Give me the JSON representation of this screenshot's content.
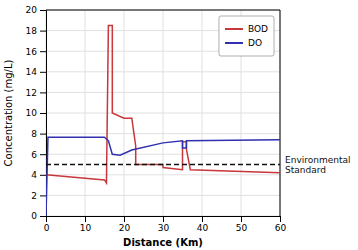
{
  "chart_data": {
    "type": "line",
    "xlabel": "Distance (Km)",
    "ylabel": "Concentration (mg/L)",
    "xlim": [
      0,
      60
    ],
    "ylim": [
      0,
      20
    ],
    "xticks": [
      0,
      10,
      20,
      30,
      40,
      50,
      60
    ],
    "yticks": [
      0,
      2,
      4,
      6,
      8,
      10,
      12,
      14,
      16,
      18,
      20
    ],
    "grid": true,
    "legend": "upper right",
    "series": [
      {
        "name": "BOD",
        "color": "#c8373a",
        "x": [
          0,
          15,
          15.5,
          15.5,
          16,
          16,
          17,
          17,
          20,
          22,
          23,
          23,
          30,
          30,
          35,
          35,
          36,
          36,
          37,
          60
        ],
        "values": [
          4.0,
          3.5,
          3.2,
          3.2,
          18.5,
          18.5,
          18.5,
          10.0,
          9.5,
          9.5,
          6.8,
          5.0,
          5.0,
          4.7,
          4.5,
          7.2,
          7.2,
          6.5,
          4.5,
          4.2
        ]
      },
      {
        "name": "DO",
        "color": "#3030b0",
        "x": [
          0,
          0.5,
          15,
          15,
          16,
          16,
          17,
          19,
          22,
          30,
          30,
          35,
          35,
          36,
          36,
          60
        ],
        "values": [
          0.0,
          7.65,
          7.65,
          7.65,
          7.3,
          7.3,
          6.0,
          5.9,
          6.4,
          7.1,
          7.1,
          7.3,
          6.6,
          6.6,
          7.3,
          7.4
        ]
      }
    ],
    "annotations": [
      {
        "text": "Environmental\nStandard",
        "y": 5.0,
        "color": "#111111",
        "line_style": "dashed"
      }
    ]
  }
}
